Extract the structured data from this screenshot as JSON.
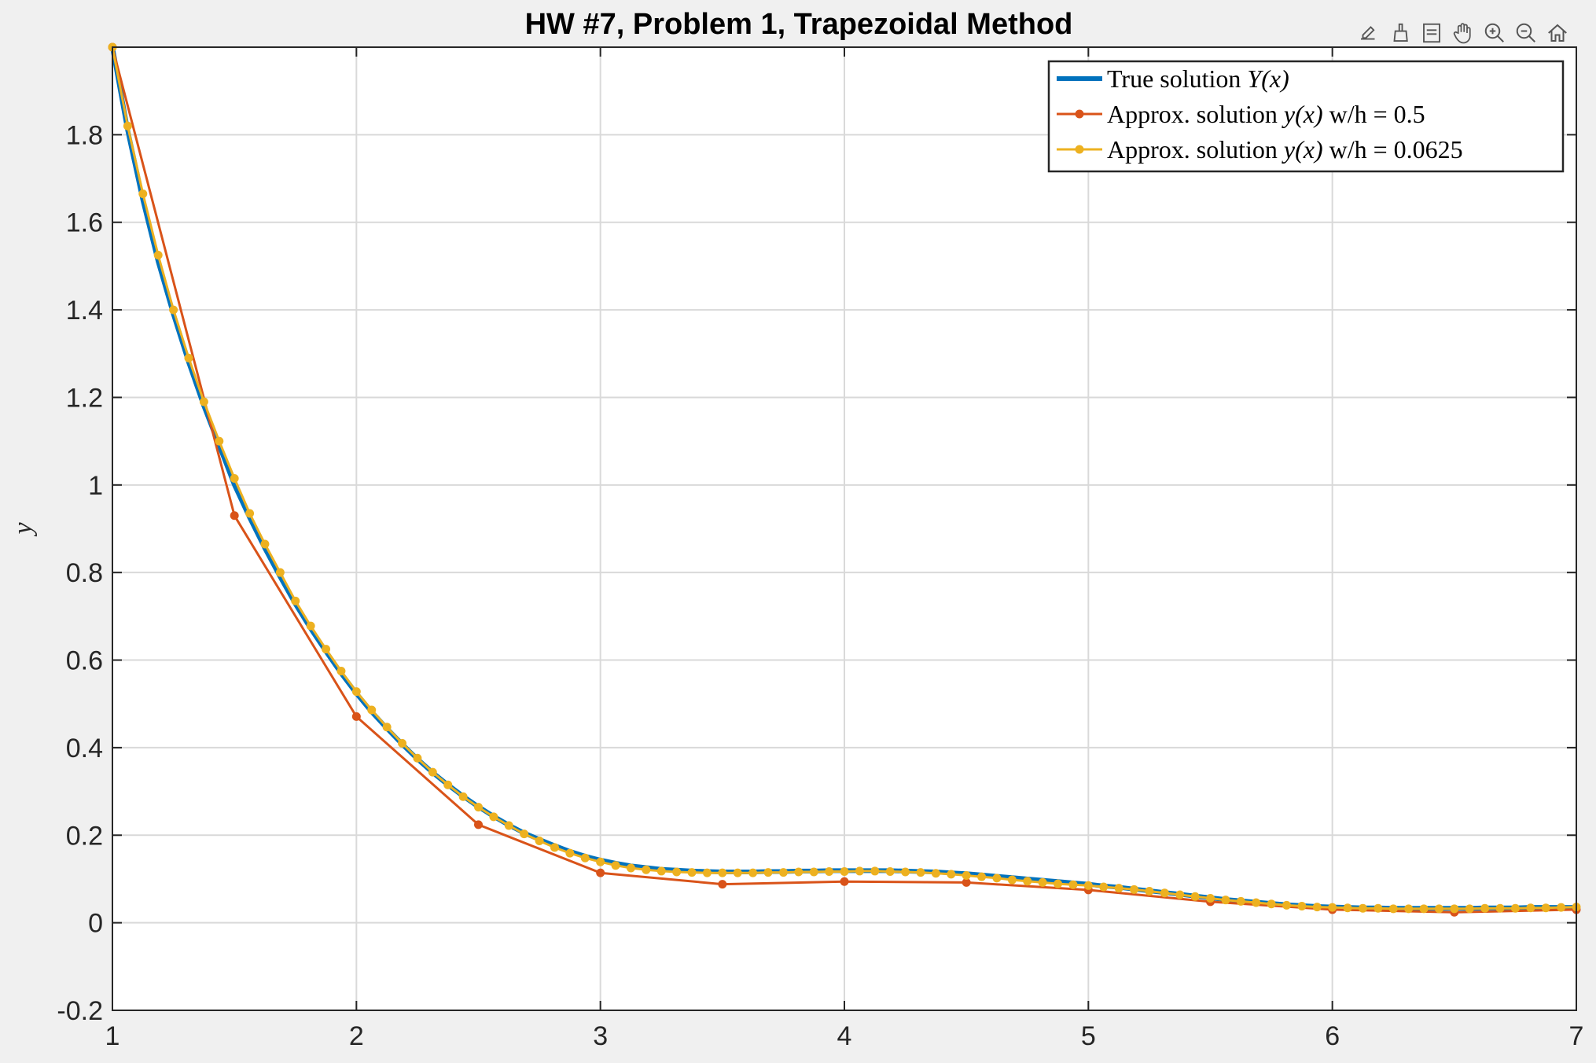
{
  "chart_data": {
    "type": "line",
    "title": "HW #7, Problem 1, Trapezoidal Method",
    "xlabel": "",
    "ylabel": "y",
    "xlim": [
      1,
      7
    ],
    "ylim": [
      -0.2,
      2.0
    ],
    "x_ticks": [
      "1",
      "2",
      "3",
      "4",
      "5",
      "6",
      "7"
    ],
    "y_ticks": [
      "-0.2",
      "0",
      "0.2",
      "0.4",
      "0.6",
      "0.8",
      "1",
      "1.2",
      "1.4",
      "1.6",
      "1.8"
    ],
    "grid": true,
    "legend_position": "top-right",
    "series": [
      {
        "name": "True solution Y(x)",
        "color": "#0072BD",
        "marker": false,
        "x": [
          1,
          1.0625,
          1.125,
          1.1875,
          1.25,
          1.3125,
          1.375,
          1.4375,
          1.5,
          1.5625,
          1.625,
          1.6875,
          1.75,
          1.8125,
          1.875,
          1.9375,
          2,
          2.0625,
          2.125,
          2.1875,
          2.25,
          2.3125,
          2.375,
          2.4375,
          2.5,
          2.5625,
          2.625,
          2.6875,
          2.75,
          2.8125,
          2.875,
          2.9375,
          3,
          3.0625,
          3.125,
          3.1875,
          3.25,
          3.3125,
          3.375,
          3.4375,
          3.5,
          3.5625,
          3.625,
          3.6875,
          3.75,
          3.8125,
          3.875,
          3.9375,
          4,
          4.0625,
          4.125,
          4.1875,
          4.25,
          4.3125,
          4.375,
          4.4375,
          4.5,
          4.5625,
          4.625,
          4.6875,
          4.75,
          4.8125,
          4.875,
          4.9375,
          5,
          5.0625,
          5.125,
          5.1875,
          5.25,
          5.3125,
          5.375,
          5.4375,
          5.5,
          5.5625,
          5.625,
          5.6875,
          5.75,
          5.8125,
          5.875,
          5.9375,
          6,
          6.0625,
          6.125,
          6.1875,
          6.25,
          6.3125,
          6.375,
          6.4375,
          6.5,
          6.5625,
          6.625,
          6.6875,
          6.75,
          6.8125,
          6.875,
          6.9375,
          7
        ],
        "y": [
          2.0,
          1.81,
          1.65,
          1.51,
          1.39,
          1.28,
          1.18,
          1.09,
          1.0,
          0.925,
          0.855,
          0.79,
          0.728,
          0.672,
          0.62,
          0.57,
          0.524,
          0.482,
          0.444,
          0.408,
          0.374,
          0.343,
          0.315,
          0.289,
          0.265,
          0.243,
          0.223,
          0.205,
          0.19,
          0.176,
          0.163,
          0.152,
          0.143,
          0.136,
          0.13,
          0.126,
          0.122,
          0.12,
          0.118,
          0.117,
          0.116,
          0.116,
          0.116,
          0.117,
          0.117,
          0.118,
          0.118,
          0.119,
          0.119,
          0.119,
          0.119,
          0.119,
          0.118,
          0.117,
          0.116,
          0.114,
          0.112,
          0.109,
          0.106,
          0.103,
          0.1,
          0.097,
          0.094,
          0.091,
          0.088,
          0.084,
          0.081,
          0.077,
          0.073,
          0.069,
          0.065,
          0.061,
          0.057,
          0.053,
          0.05,
          0.047,
          0.044,
          0.041,
          0.039,
          0.037,
          0.036,
          0.035,
          0.034,
          0.034,
          0.033,
          0.033,
          0.033,
          0.033,
          0.033,
          0.033,
          0.034,
          0.034,
          0.034,
          0.035,
          0.035,
          0.035,
          0.035
        ]
      },
      {
        "name": "Approx. solution y(x) w/h = 0.5",
        "color": "#D95319",
        "marker": true,
        "x": [
          1,
          1.5,
          2,
          2.5,
          3,
          3.5,
          4,
          4.5,
          5,
          5.5,
          6,
          6.5,
          7
        ],
        "y": [
          2.0,
          0.93,
          0.471,
          0.224,
          0.114,
          0.088,
          0.094,
          0.092,
          0.075,
          0.048,
          0.03,
          0.024,
          0.03
        ]
      },
      {
        "name": "Approx. solution y(x) w/h = 0.0625",
        "color": "#EDB120",
        "marker": true,
        "x": [
          1,
          1.0625,
          1.125,
          1.1875,
          1.25,
          1.3125,
          1.375,
          1.4375,
          1.5,
          1.5625,
          1.625,
          1.6875,
          1.75,
          1.8125,
          1.875,
          1.9375,
          2,
          2.0625,
          2.125,
          2.1875,
          2.25,
          2.3125,
          2.375,
          2.4375,
          2.5,
          2.5625,
          2.625,
          2.6875,
          2.75,
          2.8125,
          2.875,
          2.9375,
          3,
          3.0625,
          3.125,
          3.1875,
          3.25,
          3.3125,
          3.375,
          3.4375,
          3.5,
          3.5625,
          3.625,
          3.6875,
          3.75,
          3.8125,
          3.875,
          3.9375,
          4,
          4.0625,
          4.125,
          4.1875,
          4.25,
          4.3125,
          4.375,
          4.4375,
          4.5,
          4.5625,
          4.625,
          4.6875,
          4.75,
          4.8125,
          4.875,
          4.9375,
          5,
          5.0625,
          5.125,
          5.1875,
          5.25,
          5.3125,
          5.375,
          5.4375,
          5.5,
          5.5625,
          5.625,
          5.6875,
          5.75,
          5.8125,
          5.875,
          5.9375,
          6,
          6.0625,
          6.125,
          6.1875,
          6.25,
          6.3125,
          6.375,
          6.4375,
          6.5,
          6.5625,
          6.625,
          6.6875,
          6.75,
          6.8125,
          6.875,
          6.9375,
          7
        ],
        "y": [
          2.0,
          1.82,
          1.665,
          1.525,
          1.4,
          1.29,
          1.19,
          1.1,
          1.015,
          0.935,
          0.865,
          0.8,
          0.735,
          0.678,
          0.625,
          0.575,
          0.528,
          0.486,
          0.447,
          0.41,
          0.376,
          0.344,
          0.315,
          0.288,
          0.264,
          0.242,
          0.222,
          0.203,
          0.187,
          0.172,
          0.159,
          0.148,
          0.139,
          0.131,
          0.125,
          0.121,
          0.118,
          0.116,
          0.115,
          0.114,
          0.114,
          0.114,
          0.114,
          0.115,
          0.115,
          0.116,
          0.116,
          0.117,
          0.117,
          0.118,
          0.118,
          0.117,
          0.116,
          0.115,
          0.113,
          0.111,
          0.108,
          0.105,
          0.102,
          0.098,
          0.095,
          0.092,
          0.089,
          0.087,
          0.085,
          0.082,
          0.079,
          0.076,
          0.072,
          0.068,
          0.064,
          0.06,
          0.056,
          0.052,
          0.049,
          0.046,
          0.043,
          0.04,
          0.038,
          0.036,
          0.035,
          0.034,
          0.033,
          0.033,
          0.032,
          0.032,
          0.032,
          0.032,
          0.032,
          0.032,
          0.033,
          0.033,
          0.033,
          0.034,
          0.034,
          0.035,
          0.036
        ]
      }
    ],
    "legend_entries": [
      {
        "prefix": "True solution ",
        "math": "Y(x)",
        "suffix": ""
      },
      {
        "prefix": "Approx. solution ",
        "math": "y(x)",
        "suffix": " w/h = 0.5"
      },
      {
        "prefix": "Approx. solution ",
        "math": "y(x)",
        "suffix": " w/h = 0.0625"
      }
    ]
  },
  "toolbar": {
    "icons": [
      "export-icon",
      "brush-icon",
      "legend-icon",
      "pan-icon",
      "zoom-in-icon",
      "zoom-out-icon",
      "home-icon"
    ]
  }
}
